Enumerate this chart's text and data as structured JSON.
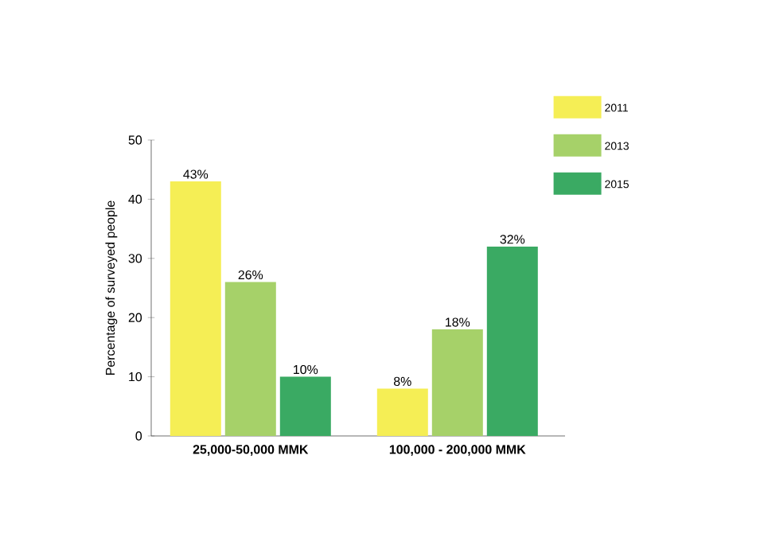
{
  "chart_data": {
    "type": "bar",
    "ylabel": "Percentage of surveyed people",
    "categories": [
      "25,000-50,000 MMK",
      "100,000 - 200,000 MMK"
    ],
    "series": [
      {
        "name": "2011",
        "color": "#f5ee55",
        "values": [
          43,
          8
        ],
        "value_labels": [
          "43%",
          "8%"
        ]
      },
      {
        "name": "2013",
        "color": "#a6d169",
        "values": [
          26,
          18
        ],
        "value_labels": [
          "26%",
          "18%"
        ]
      },
      {
        "name": "2015",
        "color": "#3aaa63",
        "values": [
          10,
          32
        ],
        "value_labels": [
          "10%",
          "32%"
        ]
      }
    ],
    "ylim": [
      0,
      50
    ],
    "yticks": [
      0,
      10,
      20,
      30,
      40,
      50
    ],
    "grid": false,
    "legend": "top right"
  }
}
